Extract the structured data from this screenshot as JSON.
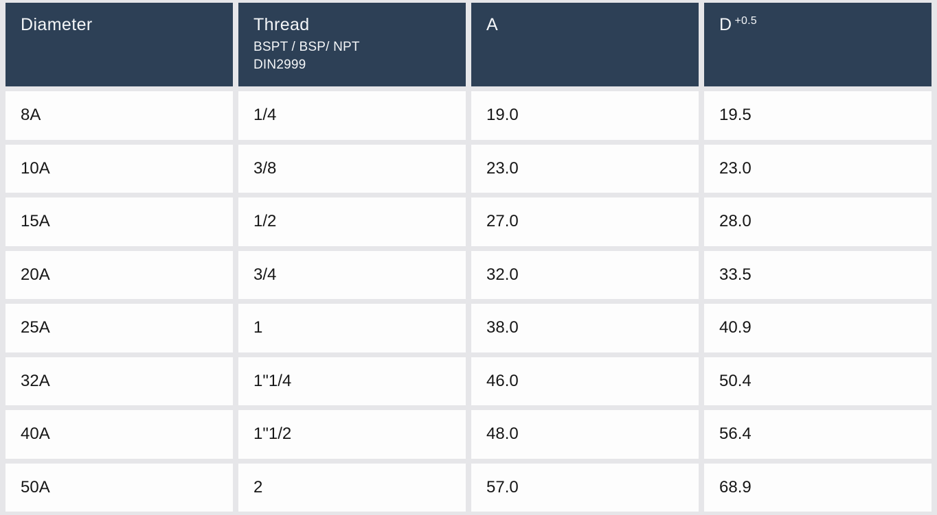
{
  "table": {
    "header": {
      "diameter": "Diameter",
      "thread": {
        "title": "Thread",
        "sub1": "BSPT / BSP/ NPT",
        "sub2": "DIN2999"
      },
      "a": "A",
      "d": {
        "base": "D",
        "tolerance": "+0.5"
      }
    },
    "rows": [
      {
        "diameter": "8A",
        "thread": "1/4",
        "a": "19.0",
        "d": "19.5"
      },
      {
        "diameter": "10A",
        "thread": "3/8",
        "a": "23.0",
        "d": "23.0"
      },
      {
        "diameter": "15A",
        "thread": "1/2",
        "a": "27.0",
        "d": "28.0"
      },
      {
        "diameter": "20A",
        "thread": "3/4",
        "a": "32.0",
        "d": "33.5"
      },
      {
        "diameter": "25A",
        "thread": "1",
        "a": "38.0",
        "d": "40.9"
      },
      {
        "diameter": "32A",
        "thread": "1\"1/4",
        "a": "46.0",
        "d": "50.4"
      },
      {
        "diameter": "40A",
        "thread": "1\"1/2",
        "a": "48.0",
        "d": "56.4"
      },
      {
        "diameter": "50A",
        "thread": "2",
        "a": "57.0",
        "d": "68.9"
      }
    ],
    "colors": {
      "header_bg": "#2d4056",
      "header_text": "#f4f6f8",
      "row_bg": "#fdfdfd",
      "body_text": "#161616",
      "page_bg": "#e6e6e9"
    }
  }
}
